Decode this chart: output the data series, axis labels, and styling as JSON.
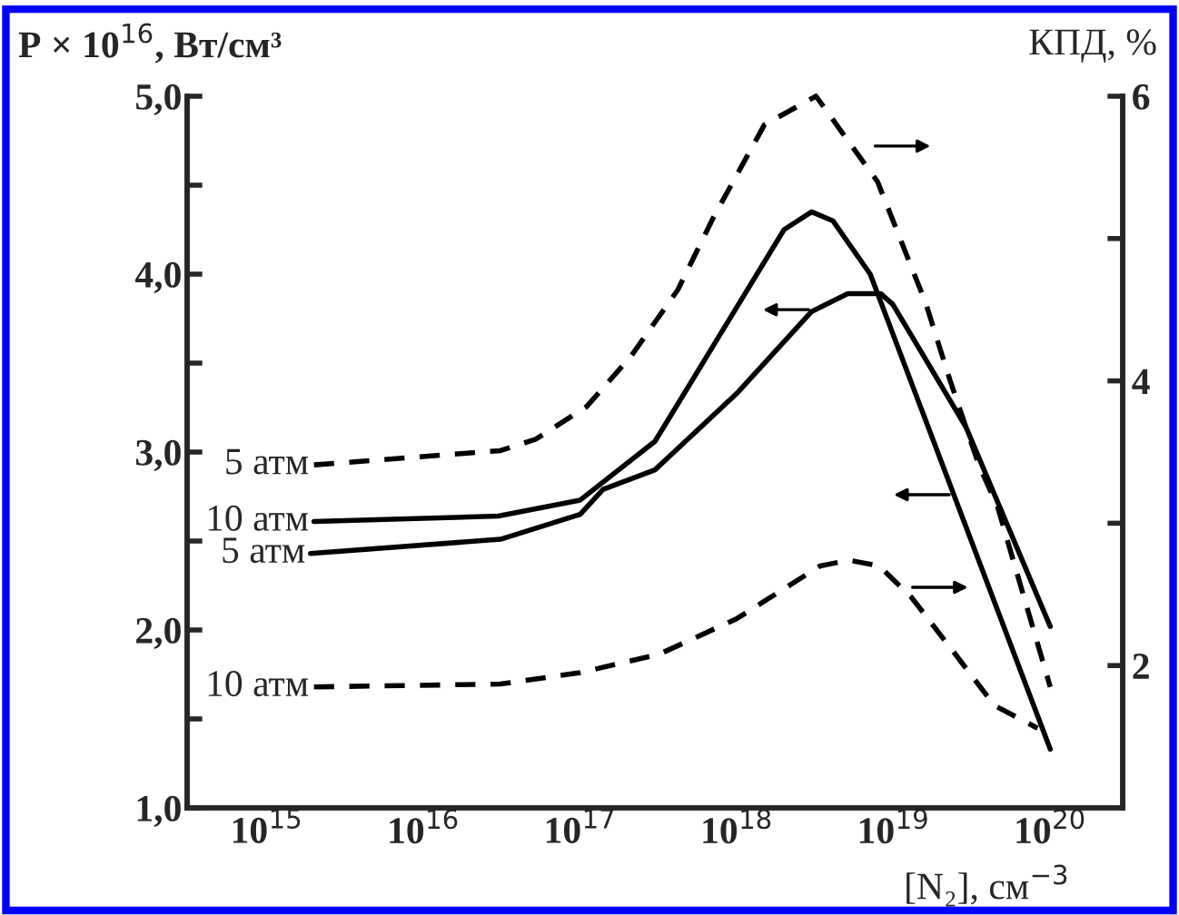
{
  "chart_data": {
    "type": "line",
    "log": "x",
    "ylabel": "P × 10$^{16}$, Вт/см³",
    "y2label": "КПД, %",
    "xlabel": "[N₂], см$^{−3}$",
    "xlim": [
      310000000000000.0,
      2.9e+20
    ],
    "xticks": [
      {
        "value": 1000000000000000.0,
        "label": "10$^{15}$"
      },
      {
        "value": 1e+16,
        "label": "10$^{16}$"
      },
      {
        "value": 1e+17,
        "label": "10$^{17}$"
      },
      {
        "value": 1e+18,
        "label": "10$^{18}$"
      },
      {
        "value": 1e+19,
        "label": "10$^{19}$"
      },
      {
        "value": 1e+20,
        "label": "10$^{20}$"
      }
    ],
    "ylim": [
      1,
      5
    ],
    "yticks": [
      {
        "value": 1,
        "label": "1,0"
      },
      {
        "value": 1.5,
        "label": null
      },
      {
        "value": 2,
        "label": "2,0"
      },
      {
        "value": 2.5,
        "label": null
      },
      {
        "value": 3,
        "label": "3,0"
      },
      {
        "value": 3.5,
        "label": null
      },
      {
        "value": 4,
        "label": "4,0"
      },
      {
        "value": 4.5,
        "label": null
      },
      {
        "value": 5,
        "label": "5,0"
      }
    ],
    "y2lim": [
      1,
      6
    ],
    "y2ticks": [
      2,
      {
        "value": 3,
        "label": null
      },
      4,
      {
        "value": 5,
        "label": null
      },
      6
    ],
    "grid": false,
    "legend": false,
    "marker": "none",
    "series": [
      {
        "name": "10 атм",
        "color": "#000000",
        "line_style": "solid",
        "x": [
          2000000000000000.0,
          3e+16,
          1e+17,
          3e+17,
          7.1e+17,
          2e+18,
          3e+18,
          4.1e+18,
          7.1e+18,
          1e+20
        ],
        "values": [
          2.61,
          2.64,
          2.73,
          3.06,
          3.6,
          4.25,
          4.35,
          4.3,
          4.0,
          1.33
        ]
      },
      {
        "name": "5 атм",
        "color": "#000000",
        "line_style": "solid",
        "x": [
          1900000000000000.0,
          3.1e+16,
          1e+17,
          1.4e+17,
          3e+17,
          1e+18,
          3e+18,
          5.1e+18,
          8.3e+18,
          9.9e+18,
          2.9e+19,
          1e+20
        ],
        "values": [
          2.43,
          2.51,
          2.65,
          2.79,
          2.9,
          3.33,
          3.79,
          3.89,
          3.89,
          3.83,
          3.14,
          2.02
        ]
      },
      {
        "name": "5 атм",
        "color": "#000000",
        "line_style": "dashed",
        "axis": "y2",
        "x": [
          2000000000000000.0,
          3.1e+16,
          5.2e+16,
          1.1e+17,
          2.1e+17,
          4.2e+17,
          7.1e+17,
          1.5e+18,
          3.2e+18,
          7.9e+18,
          1.6e+19,
          2.3e+19,
          3.5e+19,
          4.6e+19,
          1e+20
        ],
        "values": [
          3.41,
          3.51,
          3.59,
          3.82,
          4.17,
          4.64,
          5.15,
          5.8,
          6.0,
          5.4,
          4.55,
          4.0,
          3.41,
          3.12,
          1.85
        ]
      },
      {
        "name": "10 атм",
        "color": "#000000",
        "line_style": "dashed",
        "axis": "y2",
        "x": [
          2000000000000000.0,
          3.1e+16,
          1e+17,
          3.2e+17,
          1e+18,
          3.4e+18,
          5.2e+18,
          8.1e+18,
          1.3e+19,
          2.4e+19,
          4.4e+19,
          8.3e+19
        ],
        "values": [
          1.85,
          1.87,
          1.95,
          2.08,
          2.33,
          2.7,
          2.74,
          2.7,
          2.48,
          2.1,
          1.72,
          1.56
        ]
      }
    ]
  }
}
